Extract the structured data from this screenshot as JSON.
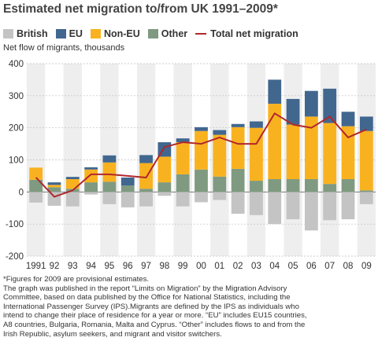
{
  "title": "Estimated net migration to/from UK 1991–2009*",
  "ylabel": "Net flow of migrants, thousands",
  "notes": [
    "*Figures for 2009 are provisional estimates.",
    "The graph was published in the report “Limits on Migration” by the Migration Advisory",
    "Committee, based on data published by the Office for National Statistics, including the",
    "International Passenger Survey (IPS).Migrants are defined by the IPS as individuals who",
    "intend to change their place of residence for a year or more. “EU” includes EU15 countries,",
    "A8 countries, Bulgaria, Romania, Malta and Cyprus. “Other” includes flows to and from the",
    "Irish Republic, asylum seekers, and migrant and visitor switchers."
  ],
  "chart_data": {
    "type": "bar",
    "stacked": true,
    "categories": [
      "1991",
      "92",
      "93",
      "94",
      "95",
      "96",
      "97",
      "98",
      "99",
      "00",
      "01",
      "02",
      "03",
      "04",
      "05",
      "06",
      "07",
      "08",
      "09"
    ],
    "ylim": [
      -200,
      400
    ],
    "yticks": [
      -200,
      -100,
      0,
      100,
      200,
      300,
      400
    ],
    "grid": true,
    "legend_position": "top",
    "series": [
      {
        "name": "British",
        "color": "#c4c4c4",
        "values": [
          -33,
          -43,
          -45,
          -8,
          -38,
          -48,
          -45,
          -12,
          -45,
          -32,
          -25,
          -68,
          -72,
          -100,
          -85,
          -120,
          -88,
          -85,
          -38
        ]
      },
      {
        "name": "EU",
        "color": "#41678f",
        "values": [
          0,
          8,
          7,
          7,
          22,
          25,
          25,
          45,
          12,
          12,
          15,
          10,
          20,
          75,
          80,
          80,
          107,
          45,
          45
        ]
      },
      {
        "name": "Non-EU",
        "color": "#f9b21f",
        "values": [
          38,
          7,
          30,
          40,
          60,
          0,
          80,
          80,
          100,
          120,
          130,
          130,
          165,
          235,
          170,
          195,
          190,
          165,
          185
        ]
      },
      {
        "name": "Other",
        "color": "#7f9a80",
        "values": [
          38,
          15,
          10,
          30,
          32,
          20,
          10,
          30,
          55,
          70,
          48,
          72,
          35,
          40,
          40,
          40,
          25,
          40,
          5
        ]
      }
    ],
    "line": {
      "name": "Total net migration",
      "color": "#b0272c",
      "values": [
        45,
        -15,
        5,
        55,
        55,
        50,
        45,
        140,
        155,
        150,
        170,
        150,
        150,
        245,
        210,
        200,
        235,
        170,
        195
      ]
    }
  }
}
